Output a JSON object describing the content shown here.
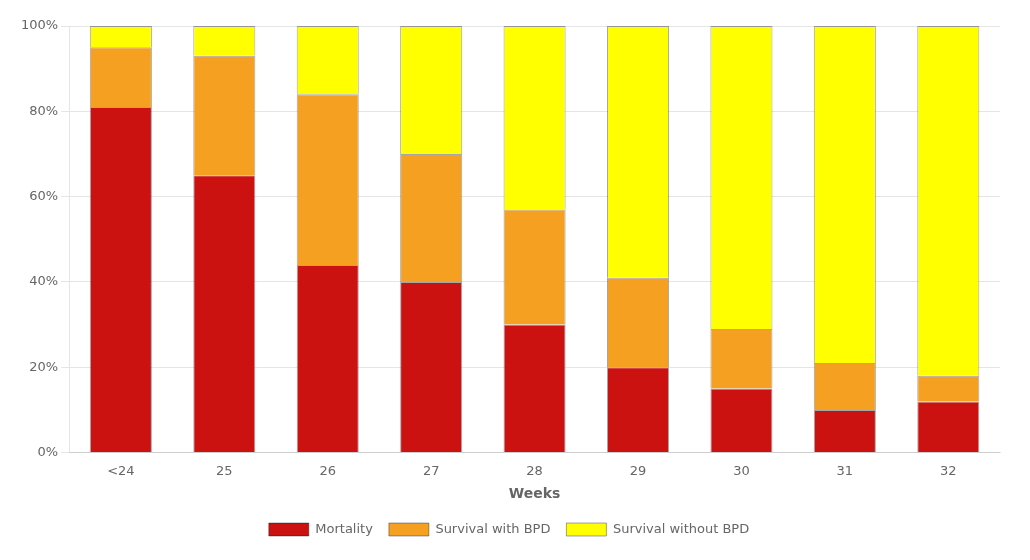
{
  "chart_data": {
    "type": "bar",
    "stacked": true,
    "categories": [
      "<24",
      "25",
      "26",
      "27",
      "28",
      "29",
      "30",
      "31",
      "32"
    ],
    "series": [
      {
        "name": "Mortality",
        "color": "#CC1111",
        "values": [
          81,
          65,
          44,
          40,
          30,
          20,
          15,
          10,
          12
        ]
      },
      {
        "name": "Survival with BPD",
        "color": "#F5A020",
        "values": [
          14,
          28,
          40,
          30,
          27,
          21,
          14,
          11,
          6
        ]
      },
      {
        "name": "Survival without BPD",
        "color": "#FFFF00",
        "values": [
          5,
          7,
          16,
          30,
          43,
          59,
          71,
          79,
          82
        ]
      }
    ],
    "x_label": "Weeks",
    "ylim": [
      0,
      100
    ],
    "yticks": [
      {
        "value": 0,
        "label": "0%"
      },
      {
        "value": 20,
        "label": "20%"
      },
      {
        "value": 40,
        "label": "40%"
      },
      {
        "value": 60,
        "label": "60%"
      },
      {
        "value": 80,
        "label": "80%"
      },
      {
        "value": 100,
        "label": "100%"
      }
    ],
    "grid": true,
    "legend": "bottom"
  }
}
